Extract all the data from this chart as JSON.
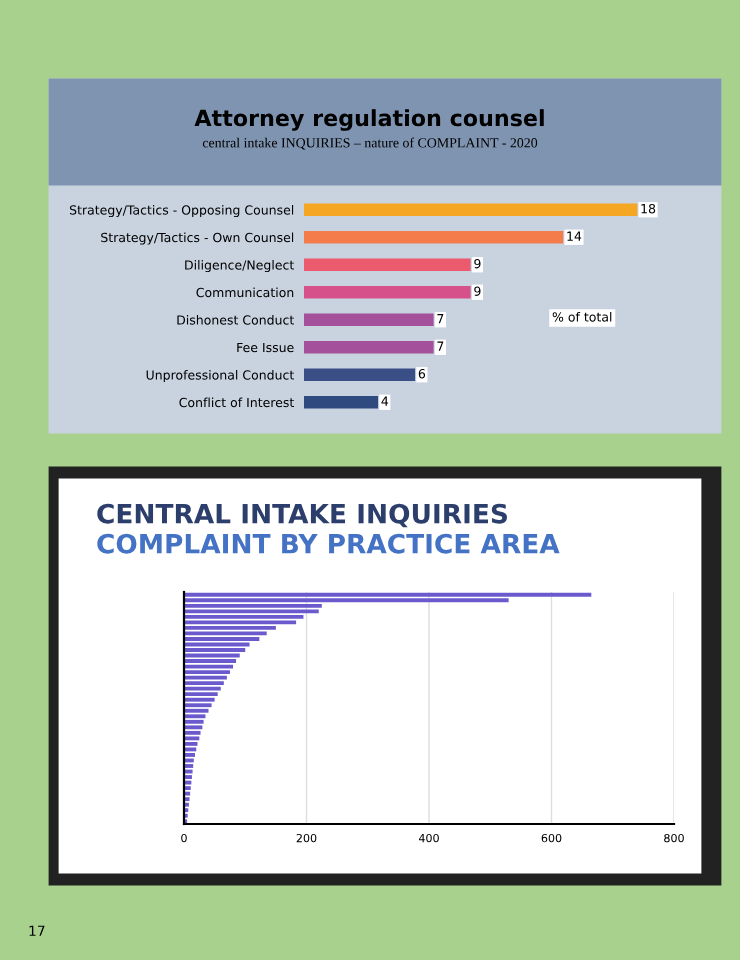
{
  "chart_data": [
    {
      "type": "bar",
      "orientation": "horizontal",
      "title": "Attorney regulation counsel",
      "subtitle": "central intake INQUIRIES – nature of COMPLAINT - 2020",
      "categories": [
        "Strategy/Tactics - Opposing Counsel",
        "Strategy/Tactics - Own Counsel",
        "Diligence/Neglect",
        "Communication",
        "Dishonest Conduct",
        "Fee Issue",
        "Unprofessional Conduct",
        "Conflict of Interest"
      ],
      "values": [
        18,
        14,
        9,
        9,
        7,
        7,
        6,
        4
      ],
      "colors": [
        "#f5a623",
        "#f47c4a",
        "#ec5a6e",
        "#d6508a",
        "#a5509b",
        "#a5509b",
        "#3a4f86",
        "#2f4a7e"
      ],
      "data_labels": true,
      "annotations": [
        "% of total"
      ]
    },
    {
      "type": "bar",
      "orientation": "horizontal",
      "title": "CENTRAL INTAKE INQUIRIES",
      "subtitle": "COMPLAINT BY PRACTICE AREA",
      "categories": [
        null,
        null,
        null,
        null,
        null,
        null,
        null,
        null,
        null,
        null,
        null,
        null,
        null,
        null,
        null,
        null,
        null,
        null,
        null,
        null,
        null,
        null,
        null,
        null,
        null,
        null,
        null,
        null,
        null,
        null,
        null,
        null,
        null,
        null,
        null,
        null,
        null,
        null,
        null,
        null,
        null,
        null
      ],
      "values": [
        665,
        530,
        225,
        220,
        195,
        183,
        150,
        135,
        123,
        107,
        100,
        91,
        85,
        80,
        75,
        70,
        65,
        60,
        55,
        50,
        45,
        40,
        35,
        32,
        30,
        27,
        25,
        22,
        20,
        18,
        16,
        15,
        14,
        13,
        12,
        11,
        10,
        9,
        8,
        7,
        6,
        5
      ],
      "color": "#6a5acd",
      "xlim": [
        0,
        800
      ],
      "xticks": [
        0,
        200,
        400,
        600,
        800
      ],
      "grid": "x",
      "annotations": [
        "17"
      ]
    }
  ]
}
